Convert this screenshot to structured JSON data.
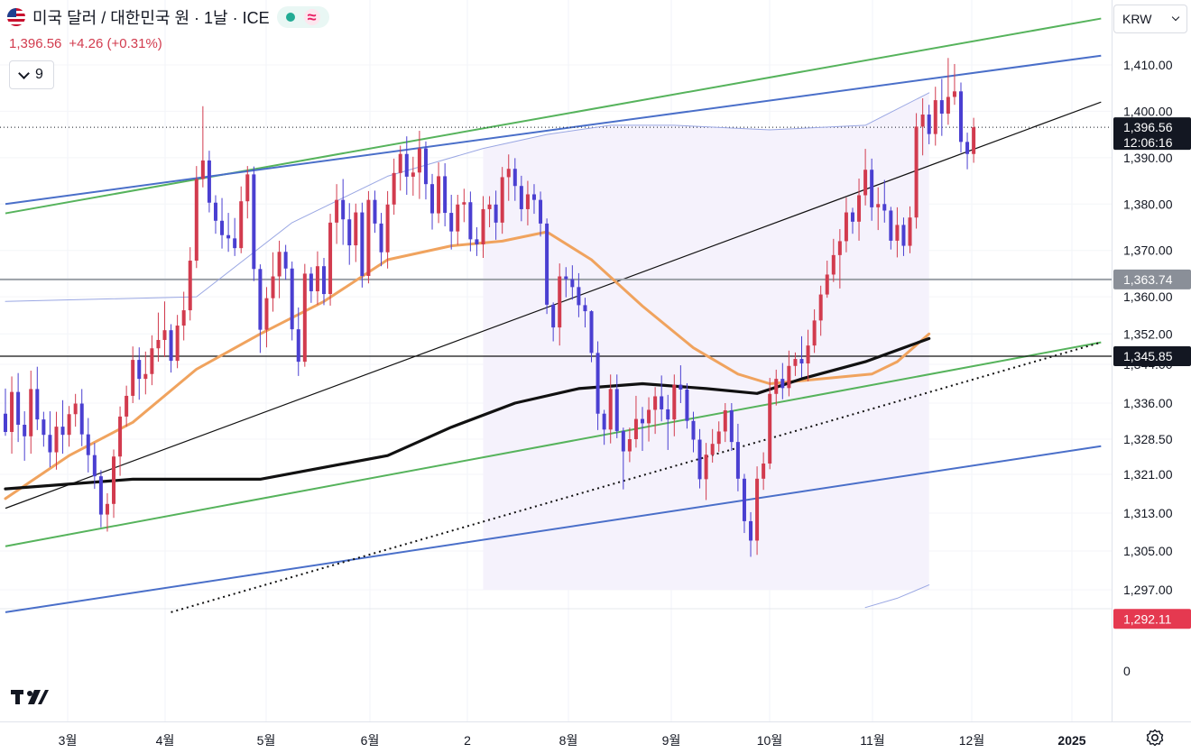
{
  "header": {
    "title": "미국 달러 / 대한민국 원 · 1날 · ICE",
    "price": "1,396.56",
    "change": "+4.26 (+0.31%)",
    "indicator_count": "9"
  },
  "currency_select": "KRW",
  "colors": {
    "up": "#d23b4e",
    "down": "#4a3fd1",
    "green_channel": "#56b35c",
    "blue_channel": "#4a6fc9",
    "ma_orange": "#f0a35e",
    "ma_black": "#111111",
    "band": "#9aa7e3",
    "price_tag": "#131722",
    "low_tag": "#e53950"
  },
  "chart_data": {
    "type": "candlestick",
    "y_ticks": [
      1410,
      1400,
      1390,
      1380,
      1370,
      1360,
      1352,
      1344,
      1336,
      1328.5,
      1321,
      1313,
      1305,
      1297
    ],
    "y_tick_labels": [
      "1,410.00",
      "1,400.00",
      "1,390.00",
      "1,380.00",
      "1,370.00",
      "1,360.00",
      "1,352.00",
      "1,344.00",
      "1,336.00",
      "1,328.50",
      "1,321.00",
      "1,313.00",
      "1,305.00",
      "1,297.00"
    ],
    "zero_label": "0",
    "x_labels": [
      "3월",
      "4월",
      "5월",
      "6월",
      "2",
      "8월",
      "9월",
      "10월",
      "11월",
      "12월",
      "2025"
    ],
    "current_price": {
      "value": 1396.56,
      "label": "1,396.56",
      "countdown": "12:06:16"
    },
    "price_levels": [
      {
        "value": 1363.74,
        "label": "1,363.74",
        "style": "gray"
      },
      {
        "value": 1345.85,
        "label": "1,345.85",
        "style": "black"
      },
      {
        "value": 1292.11,
        "label": "1,292.11",
        "style": "red"
      }
    ],
    "candles": [
      [
        1333.8,
        1339.0,
        1329.2,
        1330.0
      ],
      [
        1330.0,
        1341.5,
        1325.4,
        1338.3
      ],
      [
        1338.3,
        1342.2,
        1327.9,
        1331.5
      ],
      [
        1331.5,
        1334.3,
        1323.9,
        1329.1
      ],
      [
        1329.1,
        1342.7,
        1325.4,
        1338.9
      ],
      [
        1338.9,
        1343.5,
        1330.4,
        1332.6
      ],
      [
        1332.6,
        1334.2,
        1326.9,
        1329.4
      ],
      [
        1329.4,
        1334.3,
        1322.5,
        1325.7
      ],
      [
        1325.7,
        1334.2,
        1322.0,
        1331.1
      ],
      [
        1331.1,
        1336.6,
        1325.4,
        1329.4
      ],
      [
        1329.4,
        1335.4,
        1326.9,
        1333.7
      ],
      [
        1333.7,
        1337.9,
        1331.1,
        1335.9
      ],
      [
        1335.9,
        1338.9,
        1327.0,
        1329.5
      ],
      [
        1329.5,
        1332.9,
        1321.4,
        1325.1
      ],
      [
        1325.1,
        1327.7,
        1318.0,
        1320.6
      ],
      [
        1320.6,
        1321.9,
        1310.0,
        1312.7
      ],
      [
        1312.7,
        1317.1,
        1309.1,
        1314.9
      ],
      [
        1314.9,
        1326.3,
        1312.0,
        1324.8
      ],
      [
        1324.8,
        1335.3,
        1320.7,
        1333.2
      ],
      [
        1333.2,
        1339.6,
        1331.1,
        1337.5
      ],
      [
        1337.5,
        1349.3,
        1336.0,
        1346.4
      ],
      [
        1346.4,
        1349.1,
        1336.7,
        1341.0
      ],
      [
        1341.0,
        1348.2,
        1337.8,
        1342.0
      ],
      [
        1342.0,
        1351.7,
        1339.7,
        1348.9
      ],
      [
        1348.9,
        1356.6,
        1346.0,
        1350.7
      ],
      [
        1350.7,
        1359.0,
        1347.0,
        1352.8
      ],
      [
        1352.8,
        1354.1,
        1342.3,
        1346.2
      ],
      [
        1346.2,
        1356.1,
        1343.2,
        1353.8
      ],
      [
        1353.8,
        1361.1,
        1350.6,
        1357.1
      ],
      [
        1357.1,
        1370.7,
        1354.9,
        1367.8
      ],
      [
        1367.8,
        1388.2,
        1366.2,
        1385.4
      ],
      [
        1385.4,
        1401.1,
        1383.6,
        1389.4
      ],
      [
        1389.4,
        1391.5,
        1378.2,
        1380.3
      ],
      [
        1380.3,
        1381.9,
        1373.6,
        1376.4
      ],
      [
        1376.4,
        1381.3,
        1370.4,
        1373.3
      ],
      [
        1373.3,
        1378.1,
        1369.7,
        1372.6
      ],
      [
        1372.6,
        1377.0,
        1368.8,
        1370.5
      ],
      [
        1370.5,
        1383.8,
        1369.4,
        1380.6
      ],
      [
        1380.6,
        1388.2,
        1376.9,
        1386.4
      ],
      [
        1386.4,
        1388.1,
        1363.4,
        1366.0
      ],
      [
        1366.0,
        1367.0,
        1347.9,
        1352.9
      ],
      [
        1352.9,
        1362.1,
        1349.1,
        1359.7
      ],
      [
        1359.7,
        1369.6,
        1356.8,
        1364.4
      ],
      [
        1364.4,
        1372.1,
        1359.7,
        1369.7
      ],
      [
        1369.7,
        1371.2,
        1363.7,
        1366.1
      ],
      [
        1366.1,
        1367.6,
        1350.6,
        1353.0
      ],
      [
        1353.0,
        1357.7,
        1341.6,
        1346.0
      ],
      [
        1346.0,
        1367.1,
        1343.5,
        1365.0
      ],
      [
        1365.0,
        1366.4,
        1358.7,
        1361.2
      ],
      [
        1361.2,
        1369.8,
        1358.3,
        1366.6
      ],
      [
        1366.6,
        1368.4,
        1358.2,
        1360.6
      ],
      [
        1360.6,
        1377.9,
        1358.1,
        1376.0
      ],
      [
        1376.0,
        1384.3,
        1371.4,
        1380.9
      ],
      [
        1380.9,
        1385.4,
        1371.2,
        1376.7
      ],
      [
        1376.7,
        1380.2,
        1366.9,
        1371.1
      ],
      [
        1371.1,
        1380.1,
        1367.5,
        1378.2
      ],
      [
        1378.2,
        1380.3,
        1362.0,
        1364.5
      ],
      [
        1364.5,
        1382.8,
        1362.9,
        1380.9
      ],
      [
        1380.9,
        1382.9,
        1373.8,
        1375.8
      ],
      [
        1375.8,
        1378.1,
        1366.6,
        1369.6
      ],
      [
        1369.6,
        1382.8,
        1366.1,
        1379.9
      ],
      [
        1379.9,
        1389.8,
        1377.7,
        1386.7
      ],
      [
        1386.7,
        1392.6,
        1382.9,
        1390.8
      ],
      [
        1390.8,
        1394.6,
        1382.0,
        1385.9
      ],
      [
        1385.9,
        1390.2,
        1381.8,
        1386.8
      ],
      [
        1386.8,
        1395.8,
        1381.1,
        1392.0
      ],
      [
        1392.0,
        1393.5,
        1381.0,
        1384.3
      ],
      [
        1384.3,
        1386.5,
        1374.5,
        1378.0
      ],
      [
        1378.0,
        1389.0,
        1375.9,
        1386.0
      ],
      [
        1386.0,
        1388.8,
        1375.2,
        1378.1
      ],
      [
        1378.1,
        1382.0,
        1370.2,
        1374.1
      ],
      [
        1374.1,
        1382.0,
        1371.2,
        1379.9
      ],
      [
        1379.9,
        1383.3,
        1376.1,
        1380.4
      ],
      [
        1380.4,
        1382.7,
        1369.8,
        1372.4
      ],
      [
        1372.4,
        1375.0,
        1368.8,
        1371.3
      ],
      [
        1371.3,
        1381.7,
        1368.4,
        1378.9
      ],
      [
        1378.9,
        1381.7,
        1375.0,
        1379.9
      ],
      [
        1379.9,
        1382.9,
        1372.3,
        1376.0
      ],
      [
        1376.0,
        1388.0,
        1373.6,
        1385.8
      ],
      [
        1385.8,
        1390.7,
        1380.7,
        1387.6
      ],
      [
        1387.6,
        1389.9,
        1380.7,
        1383.9
      ],
      [
        1383.9,
        1386.1,
        1376.3,
        1378.9
      ],
      [
        1378.9,
        1385.0,
        1375.4,
        1382.1
      ],
      [
        1382.1,
        1384.3,
        1377.9,
        1380.9
      ],
      [
        1380.9,
        1382.7,
        1373.0,
        1375.8
      ],
      [
        1375.8,
        1376.9,
        1356.3,
        1358.3
      ],
      [
        1358.3,
        1358.8,
        1350.4,
        1353.4
      ],
      [
        1353.4,
        1367.2,
        1349.5,
        1364.4
      ],
      [
        1364.4,
        1366.4,
        1359.9,
        1363.8
      ],
      [
        1363.8,
        1366.8,
        1359.4,
        1362.1
      ],
      [
        1362.1,
        1365.1,
        1355.6,
        1358.2
      ],
      [
        1358.2,
        1359.8,
        1353.4,
        1356.9
      ],
      [
        1356.9,
        1357.1,
        1345.9,
        1347.9
      ],
      [
        1347.9,
        1350.4,
        1330.4,
        1333.8
      ],
      [
        1333.8,
        1334.6,
        1327.3,
        1330.5
      ],
      [
        1330.5,
        1341.9,
        1327.6,
        1338.9
      ],
      [
        1338.9,
        1341.9,
        1328.7,
        1330.2
      ],
      [
        1330.2,
        1330.9,
        1317.9,
        1325.9
      ],
      [
        1325.9,
        1330.9,
        1323.6,
        1328.5
      ],
      [
        1328.5,
        1337.5,
        1326.7,
        1332.7
      ],
      [
        1332.7,
        1335.2,
        1326.0,
        1331.8
      ],
      [
        1331.8,
        1337.2,
        1328.0,
        1334.6
      ],
      [
        1334.6,
        1339.3,
        1329.6,
        1337.4
      ],
      [
        1337.4,
        1341.7,
        1332.2,
        1334.7
      ],
      [
        1334.7,
        1337.7,
        1326.2,
        1332.6
      ],
      [
        1332.6,
        1341.9,
        1329.1,
        1339.8
      ],
      [
        1339.8,
        1343.8,
        1336.0,
        1338.8
      ],
      [
        1338.8,
        1340.1,
        1330.7,
        1332.3
      ],
      [
        1332.3,
        1334.2,
        1325.7,
        1328.4
      ],
      [
        1328.4,
        1330.6,
        1318.1,
        1320.0
      ],
      [
        1320.0,
        1327.7,
        1315.7,
        1325.2
      ],
      [
        1325.2,
        1330.6,
        1323.5,
        1327.5
      ],
      [
        1327.5,
        1332.2,
        1325.8,
        1330.1
      ],
      [
        1330.1,
        1336.0,
        1327.9,
        1334.5
      ],
      [
        1334.5,
        1336.0,
        1326.0,
        1327.9
      ],
      [
        1327.9,
        1331.7,
        1317.5,
        1320.1
      ],
      [
        1320.1,
        1321.1,
        1308.8,
        1311.3
      ],
      [
        1311.3,
        1313.2,
        1303.8,
        1307.2
      ],
      [
        1307.2,
        1322.7,
        1304.2,
        1320.1
      ],
      [
        1320.1,
        1325.7,
        1317.8,
        1323.3
      ],
      [
        1323.3,
        1341.2,
        1322.1,
        1337.9
      ],
      [
        1337.9,
        1342.9,
        1335.5,
        1341.0
      ],
      [
        1341.0,
        1344.3,
        1336.8,
        1339.1
      ],
      [
        1339.1,
        1348.4,
        1337.4,
        1345.1
      ],
      [
        1345.1,
        1348.0,
        1341.6,
        1346.6
      ],
      [
        1346.6,
        1351.5,
        1341.3,
        1344.2
      ],
      [
        1344.2,
        1352.9,
        1340.5,
        1349.5
      ],
      [
        1349.5,
        1357.3,
        1347.9,
        1354.9
      ],
      [
        1354.9,
        1362.4,
        1351.6,
        1360.5
      ],
      [
        1360.5,
        1367.8,
        1359.8,
        1364.8
      ],
      [
        1364.8,
        1372.5,
        1363.2,
        1369.0
      ],
      [
        1369.0,
        1374.6,
        1361.8,
        1372.0
      ],
      [
        1372.0,
        1381.4,
        1369.6,
        1378.2
      ],
      [
        1378.2,
        1379.2,
        1373.6,
        1376.2
      ],
      [
        1376.2,
        1385.5,
        1372.1,
        1381.9
      ],
      [
        1381.9,
        1391.9,
        1379.7,
        1387.4
      ],
      [
        1387.4,
        1389.8,
        1376.4,
        1379.3
      ],
      [
        1379.3,
        1383.6,
        1374.4,
        1380.0
      ],
      [
        1380.0,
        1385.2,
        1376.0,
        1378.6
      ],
      [
        1378.6,
        1379.4,
        1370.2,
        1372.1
      ],
      [
        1372.1,
        1379.3,
        1368.5,
        1375.5
      ],
      [
        1375.5,
        1377.1,
        1368.8,
        1371.0
      ],
      [
        1371.0,
        1379.5,
        1369.4,
        1377.1
      ],
      [
        1377.1,
        1399.6,
        1374.7,
        1396.7
      ],
      [
        1396.7,
        1402.8,
        1390.5,
        1399.3
      ],
      [
        1399.3,
        1401.4,
        1392.9,
        1395.1
      ],
      [
        1395.1,
        1405.3,
        1392.6,
        1402.4
      ],
      [
        1402.4,
        1407.0,
        1394.7,
        1399.5
      ],
      [
        1399.5,
        1411.5,
        1397.1,
        1403.1
      ],
      [
        1403.1,
        1410.2,
        1401.4,
        1404.3
      ],
      [
        1404.3,
        1406.2,
        1391.1,
        1393.4
      ],
      [
        1393.4,
        1395.4,
        1387.5,
        1390.8
      ],
      [
        1390.8,
        1398.6,
        1388.9,
        1396.56
      ]
    ],
    "moving_averages": [
      {
        "name": "ma_short",
        "color": "#f0a35e",
        "points": [
          [
            0,
            1316
          ],
          [
            10,
            1325
          ],
          [
            20,
            1332
          ],
          [
            30,
            1343
          ],
          [
            40,
            1352
          ],
          [
            50,
            1359
          ],
          [
            60,
            1368
          ],
          [
            70,
            1371
          ],
          [
            78,
            1372
          ],
          [
            85,
            1374
          ],
          [
            92,
            1368
          ],
          [
            100,
            1358
          ],
          [
            108,
            1349
          ],
          [
            115,
            1342
          ],
          [
            120,
            1340
          ],
          [
            128,
            1341
          ],
          [
            136,
            1342
          ],
          [
            140,
            1346
          ],
          [
            145,
            1352
          ]
        ]
      },
      {
        "name": "ma_long",
        "color": "#111111",
        "points": [
          [
            0,
            1318
          ],
          [
            20,
            1320
          ],
          [
            40,
            1320
          ],
          [
            60,
            1325
          ],
          [
            70,
            1331
          ],
          [
            80,
            1336
          ],
          [
            90,
            1339
          ],
          [
            100,
            1340
          ],
          [
            110,
            1339
          ],
          [
            118,
            1338
          ],
          [
            125,
            1341
          ],
          [
            135,
            1346
          ],
          [
            145,
            1351
          ]
        ]
      },
      {
        "name": "band_upper",
        "color": "#9aa7e3",
        "points": [
          [
            0,
            1359
          ],
          [
            30,
            1360
          ],
          [
            45,
            1376
          ],
          [
            60,
            1386
          ],
          [
            75,
            1392
          ],
          [
            85,
            1395
          ],
          [
            95,
            1397
          ],
          [
            105,
            1397
          ],
          [
            120,
            1396
          ],
          [
            135,
            1397
          ],
          [
            145,
            1404
          ]
        ]
      },
      {
        "name": "band_lower",
        "color": "#9aa7e3",
        "points": [
          [
            135,
            1293
          ],
          [
            140,
            1295
          ],
          [
            145,
            1298
          ]
        ]
      }
    ],
    "channel_lines": [
      {
        "name": "green_upper",
        "color": "#56b35c",
        "style": "solid",
        "from": [
          0,
          1378
        ],
        "to": [
          172,
          1420
        ]
      },
      {
        "name": "blue_upper",
        "color": "#4a6fc9",
        "style": "solid",
        "from": [
          0,
          1380
        ],
        "to": [
          172,
          1412
        ]
      },
      {
        "name": "green_lower",
        "color": "#56b35c",
        "style": "solid",
        "from": [
          0,
          1306
        ],
        "to": [
          172,
          1349
        ]
      },
      {
        "name": "blue_lower",
        "color": "#4a6fc9",
        "style": "solid",
        "from": [
          0,
          1292
        ],
        "to": [
          172,
          1327
        ]
      },
      {
        "name": "trend_black",
        "color": "#111111",
        "style": "solid",
        "from": [
          0,
          1314
        ],
        "to": [
          172,
          1402
        ]
      },
      {
        "name": "trend_dotted",
        "color": "#111111",
        "style": "dotted",
        "from": [
          26,
          1292
        ],
        "to": [
          172,
          1349
        ]
      }
    ]
  }
}
